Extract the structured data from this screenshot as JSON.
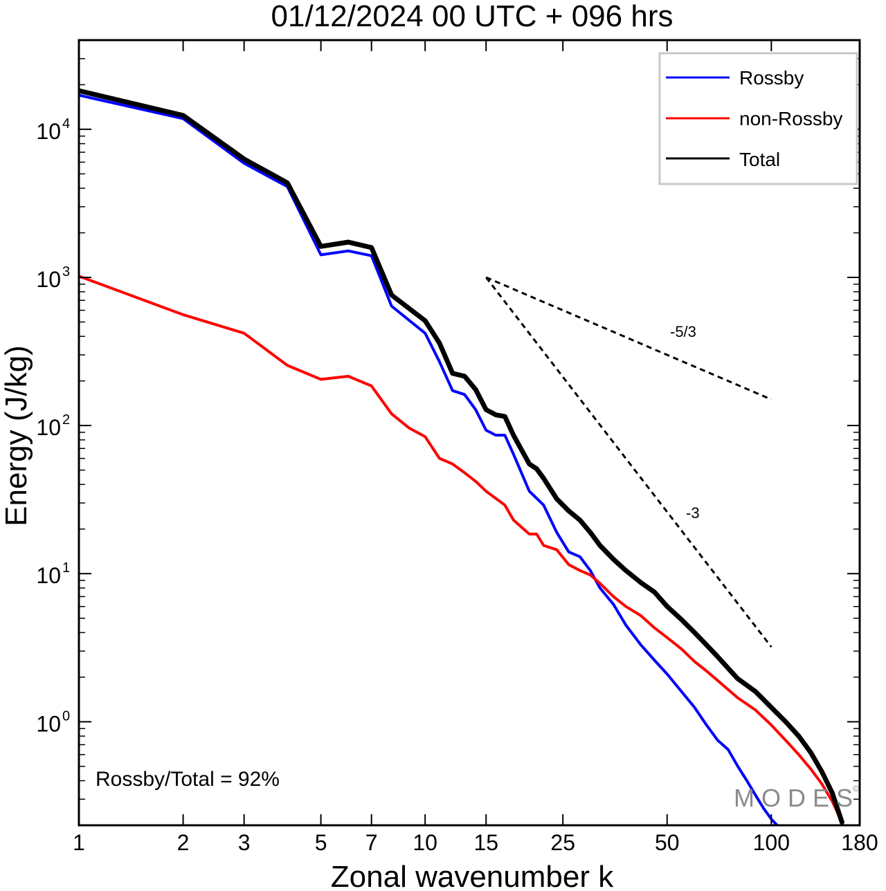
{
  "chart_data": {
    "type": "line",
    "title": "01/12/2024  00 UTC  + 096 hrs",
    "xlabel": "Zonal wavenumber k",
    "ylabel": "Energy (J/kg)",
    "xscale": "log",
    "yscale": "log",
    "xlim": [
      1,
      180
    ],
    "ylim": [
      0.2,
      40000
    ],
    "grid": false,
    "legend_position": "top-right",
    "x_ticks": [
      {
        "value": 1,
        "label": "1"
      },
      {
        "value": 2,
        "label": "2"
      },
      {
        "value": 3,
        "label": "3"
      },
      {
        "value": 5,
        "label": "5"
      },
      {
        "value": 7,
        "label": "7"
      },
      {
        "value": 10,
        "label": "10"
      },
      {
        "value": 15,
        "label": "15"
      },
      {
        "value": 25,
        "label": "25"
      },
      {
        "value": 50,
        "label": "50"
      },
      {
        "value": 100,
        "label": "100"
      },
      {
        "value": 180,
        "label": "180"
      }
    ],
    "y_ticks": [
      {
        "value": 1,
        "base": "10",
        "exp": "0"
      },
      {
        "value": 10,
        "base": "10",
        "exp": "1"
      },
      {
        "value": 100,
        "base": "10",
        "exp": "2"
      },
      {
        "value": 1000,
        "base": "10",
        "exp": "3"
      },
      {
        "value": 10000,
        "base": "10",
        "exp": "4"
      }
    ],
    "series": [
      {
        "name": "Rossby",
        "color": "#0000ff",
        "points": [
          [
            1,
            17000
          ],
          [
            2,
            11800
          ],
          [
            3,
            5900
          ],
          [
            4,
            4100
          ],
          [
            5,
            1420
          ],
          [
            6,
            1510
          ],
          [
            7,
            1400
          ],
          [
            8,
            640
          ],
          [
            10,
            420
          ],
          [
            11,
            270
          ],
          [
            12,
            172
          ],
          [
            13,
            162
          ],
          [
            14,
            128
          ],
          [
            15,
            93
          ],
          [
            16,
            86
          ],
          [
            17,
            86
          ],
          [
            18,
            64
          ],
          [
            20,
            36
          ],
          [
            22,
            29
          ],
          [
            24,
            19
          ],
          [
            26,
            14
          ],
          [
            28,
            13
          ],
          [
            30,
            10.5
          ],
          [
            32,
            8
          ],
          [
            35,
            6.2
          ],
          [
            38,
            4.5
          ],
          [
            42,
            3.3
          ],
          [
            46,
            2.6
          ],
          [
            50,
            2.1
          ],
          [
            55,
            1.6
          ],
          [
            60,
            1.25
          ],
          [
            65,
            0.95
          ],
          [
            70,
            0.75
          ],
          [
            75,
            0.65
          ],
          [
            80,
            0.5
          ],
          [
            85,
            0.4
          ],
          [
            90,
            0.32
          ],
          [
            95,
            0.26
          ],
          [
            100,
            0.22
          ],
          [
            104,
            0.2
          ]
        ]
      },
      {
        "name": "non-Rossby",
        "color": "#ff0000",
        "points": [
          [
            1,
            1020
          ],
          [
            2,
            560
          ],
          [
            3,
            420
          ],
          [
            4,
            255
          ],
          [
            5,
            205
          ],
          [
            6,
            215
          ],
          [
            7,
            185
          ],
          [
            8,
            120
          ],
          [
            9,
            96
          ],
          [
            10,
            84
          ],
          [
            11,
            60
          ],
          [
            12,
            55
          ],
          [
            13,
            48
          ],
          [
            14,
            42
          ],
          [
            15,
            36
          ],
          [
            17,
            29
          ],
          [
            18,
            23
          ],
          [
            20,
            18.5
          ],
          [
            21,
            18.5
          ],
          [
            22,
            15.5
          ],
          [
            24,
            14.5
          ],
          [
            26,
            11.5
          ],
          [
            28,
            10.5
          ],
          [
            30,
            9.8
          ],
          [
            32,
            8.6
          ],
          [
            35,
            7
          ],
          [
            38,
            6
          ],
          [
            42,
            5.2
          ],
          [
            46,
            4.3
          ],
          [
            50,
            3.7
          ],
          [
            55,
            3.1
          ],
          [
            60,
            2.55
          ],
          [
            65,
            2.2
          ],
          [
            70,
            1.9
          ],
          [
            75,
            1.65
          ],
          [
            80,
            1.45
          ],
          [
            90,
            1.2
          ],
          [
            100,
            0.95
          ],
          [
            110,
            0.75
          ],
          [
            120,
            0.6
          ],
          [
            130,
            0.48
          ],
          [
            140,
            0.38
          ],
          [
            150,
            0.29
          ],
          [
            160,
            0.21
          ]
        ]
      },
      {
        "name": "Total",
        "color": "#000000",
        "points": [
          [
            1,
            18200
          ],
          [
            2,
            12400
          ],
          [
            3,
            6300
          ],
          [
            4,
            4350
          ],
          [
            5,
            1620
          ],
          [
            6,
            1730
          ],
          [
            7,
            1590
          ],
          [
            8,
            760
          ],
          [
            10,
            510
          ],
          [
            11,
            360
          ],
          [
            12,
            225
          ],
          [
            13,
            215
          ],
          [
            14,
            175
          ],
          [
            15,
            128
          ],
          [
            16,
            118
          ],
          [
            17,
            115
          ],
          [
            18,
            86
          ],
          [
            20,
            55
          ],
          [
            21,
            51
          ],
          [
            22,
            44
          ],
          [
            24,
            32
          ],
          [
            26,
            26.5
          ],
          [
            28,
            23
          ],
          [
            30,
            19
          ],
          [
            32,
            15.5
          ],
          [
            35,
            12.5
          ],
          [
            38,
            10.5
          ],
          [
            42,
            8.7
          ],
          [
            46,
            7.5
          ],
          [
            50,
            6
          ],
          [
            55,
            4.9
          ],
          [
            60,
            4
          ],
          [
            65,
            3.3
          ],
          [
            70,
            2.75
          ],
          [
            75,
            2.3
          ],
          [
            80,
            1.95
          ],
          [
            90,
            1.6
          ],
          [
            100,
            1.25
          ],
          [
            110,
            1
          ],
          [
            120,
            0.8
          ],
          [
            130,
            0.62
          ],
          [
            140,
            0.46
          ],
          [
            150,
            0.33
          ],
          [
            160,
            0.21
          ]
        ]
      }
    ],
    "slope_lines": [
      {
        "label": "-5/3",
        "from": [
          15,
          1000
        ],
        "to": [
          100,
          150
        ]
      },
      {
        "label": "-3",
        "from": [
          15,
          1000
        ],
        "to": [
          100,
          3.2
        ]
      }
    ],
    "annotation": "Rossby/Total = 92%",
    "watermark": "MODES"
  }
}
